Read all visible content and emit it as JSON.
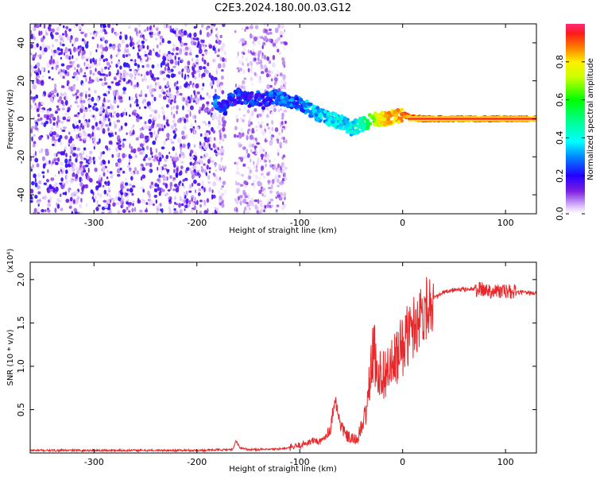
{
  "title": "C2E3.2024.180.00.03.G12",
  "chart_data": [
    {
      "type": "heatmap",
      "xlabel": "Height of straight line (km)",
      "ylabel": "Frequency (Hz)",
      "xlim": [
        -362,
        130
      ],
      "ylim": [
        -50,
        50
      ],
      "xticks": [
        -300,
        -200,
        -100,
        0,
        100
      ],
      "xtick_labels": [
        "-300",
        "-200",
        "-100",
        "0",
        "100"
      ],
      "yticks": [
        -40,
        -20,
        0,
        20,
        40
      ],
      "ytick_labels": [
        "-40",
        "-20",
        "0",
        "20",
        "40"
      ],
      "colorbar": {
        "label": "Normalized spectral amplitude",
        "range": [
          0,
          1
        ],
        "ticks": [
          0.0,
          0.2,
          0.4,
          0.6,
          0.8
        ],
        "tick_labels": [
          "0.0",
          "0.2",
          "0.4",
          "0.6",
          "0.8"
        ]
      },
      "signal_track": {
        "x": [
          -183,
          -178,
          -172,
          -168,
          -160,
          -150,
          -142,
          -135,
          -128,
          -120,
          -112,
          -105,
          -100,
          -95,
          -90,
          -85,
          -80,
          -75,
          -70,
          -65,
          -60,
          -55,
          -50,
          -45,
          -40,
          -35,
          -30,
          -25,
          -20,
          -15,
          -10,
          -5,
          0,
          5,
          10,
          20,
          40,
          60,
          80,
          100,
          130
        ],
        "freq_hz": [
          9,
          8,
          5,
          10,
          12,
          10,
          11,
          9,
          12,
          11,
          10,
          9,
          8,
          7,
          5,
          3,
          2,
          1,
          0,
          -1,
          -2,
          -3,
          -5,
          -4,
          -3,
          -2,
          -1,
          0,
          0,
          0.5,
          1,
          1.5,
          2,
          1.5,
          0.5,
          0,
          0,
          0,
          0,
          0,
          0
        ],
        "amplitude": [
          0.35,
          0.3,
          0.3,
          0.28,
          0.3,
          0.3,
          0.3,
          0.3,
          0.32,
          0.35,
          0.35,
          0.35,
          0.35,
          0.38,
          0.4,
          0.4,
          0.42,
          0.42,
          0.45,
          0.45,
          0.45,
          0.45,
          0.45,
          0.5,
          0.5,
          0.6,
          0.7,
          0.8,
          0.85,
          0.9,
          0.9,
          0.92,
          0.95,
          0.95,
          0.95,
          0.97,
          0.98,
          0.98,
          0.98,
          0.98,
          0.98
        ]
      },
      "grid": false
    },
    {
      "type": "line",
      "xlabel": "Height of straight line (km)",
      "ylabel": "SNR (10 * v/v)",
      "y_scale_label": "(x10⁴)",
      "xlim": [
        -362,
        130
      ],
      "ylim": [
        0,
        2.2
      ],
      "xticks": [
        -300,
        -200,
        -100,
        0,
        100
      ],
      "xtick_labels": [
        "-300",
        "-200",
        "-100",
        "0",
        "100"
      ],
      "yticks": [
        0.5,
        1.0,
        1.5,
        2.0
      ],
      "ytick_labels": [
        "0.5",
        "1.0",
        "1.5",
        "2.0"
      ],
      "series": [
        {
          "x": [
            -362,
            -300,
            -250,
            -200,
            -165,
            -162,
            -158,
            -150,
            -130,
            -115,
            -105,
            -100,
            -95,
            -90,
            -85,
            -80,
            -75,
            -70,
            -66,
            -63,
            -60,
            -55,
            -50,
            -45,
            -40,
            -35,
            -32,
            -28,
            -25,
            -20,
            -15,
            -10,
            -5,
            0,
            10,
            20,
            30,
            40,
            50,
            60,
            70,
            80,
            90,
            100,
            110,
            120,
            130
          ],
          "y": [
            0.03,
            0.03,
            0.03,
            0.03,
            0.04,
            0.14,
            0.06,
            0.04,
            0.04,
            0.05,
            0.07,
            0.09,
            0.11,
            0.13,
            0.15,
            0.12,
            0.2,
            0.28,
            0.65,
            0.45,
            0.32,
            0.2,
            0.16,
            0.15,
            0.28,
            0.5,
            0.85,
            1.2,
            0.95,
            0.9,
            0.95,
            1.0,
            1.1,
            1.25,
            1.45,
            1.65,
            1.78,
            1.85,
            1.88,
            1.89,
            1.89,
            1.88,
            1.87,
            1.86,
            1.85,
            1.85,
            1.84
          ]
        }
      ],
      "grid": false
    }
  ]
}
